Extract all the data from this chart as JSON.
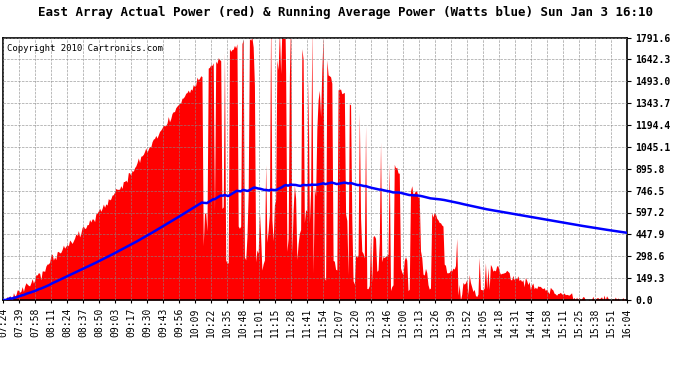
{
  "title": "East Array Actual Power (red) & Running Average Power (Watts blue) Sun Jan 3 16:10",
  "copyright": "Copyright 2010 Cartronics.com",
  "ylabel_values": [
    0.0,
    149.3,
    298.6,
    447.9,
    597.2,
    746.5,
    895.8,
    1045.1,
    1194.4,
    1343.7,
    1493.0,
    1642.3,
    1791.6
  ],
  "ymax": 1791.6,
  "ymin": 0.0,
  "x_labels": [
    "07:24",
    "07:39",
    "07:58",
    "08:11",
    "08:24",
    "08:37",
    "08:50",
    "09:03",
    "09:17",
    "09:30",
    "09:43",
    "09:56",
    "10:09",
    "10:22",
    "10:35",
    "10:48",
    "11:01",
    "11:15",
    "11:28",
    "11:41",
    "11:54",
    "12:07",
    "12:20",
    "12:33",
    "12:46",
    "13:00",
    "13:13",
    "13:26",
    "13:39",
    "13:52",
    "14:05",
    "14:18",
    "14:31",
    "14:44",
    "14:58",
    "15:11",
    "15:25",
    "15:38",
    "15:51",
    "16:04"
  ],
  "bar_color": "#ff0000",
  "line_color": "#0000ff",
  "background_color": "#ffffff",
  "grid_color": "#888888",
  "title_fontsize": 10,
  "tick_fontsize": 7
}
